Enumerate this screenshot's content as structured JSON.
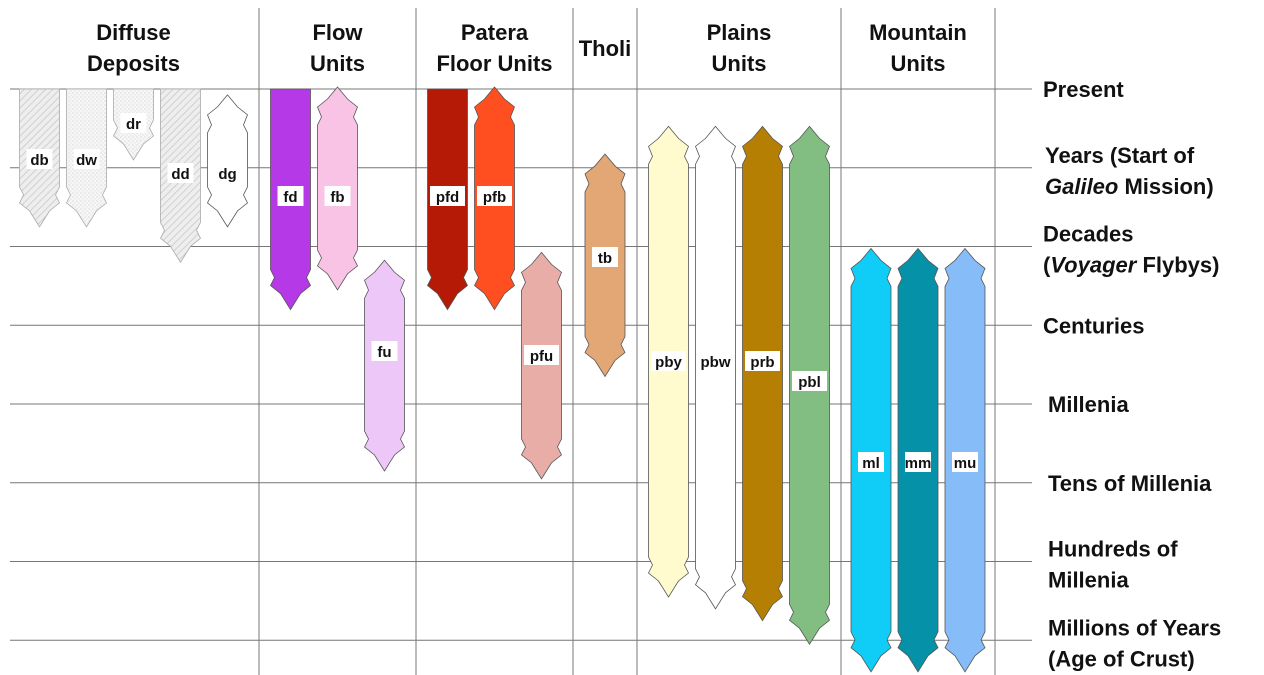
{
  "headers": [
    {
      "id": "diffuse",
      "lines": [
        "Diffuse",
        "Deposits"
      ]
    },
    {
      "id": "flow",
      "lines": [
        "Flow",
        "Units"
      ]
    },
    {
      "id": "patera",
      "lines": [
        "Patera",
        "Floor Units"
      ]
    },
    {
      "id": "tholi",
      "lines": [
        "Tholi"
      ]
    },
    {
      "id": "plains",
      "lines": [
        "Plains",
        "Units"
      ]
    },
    {
      "id": "mountain",
      "lines": [
        "Mountain",
        "Units"
      ]
    }
  ],
  "time_levels": [
    {
      "id": "present",
      "parts": [
        [
          {
            "t": "Present"
          }
        ]
      ]
    },
    {
      "id": "years",
      "parts": [
        [
          {
            "t": "Years (Start of"
          }
        ],
        [
          {
            "t": "Galileo",
            "i": true
          },
          {
            "t": " Mission)"
          }
        ]
      ]
    },
    {
      "id": "decades",
      "parts": [
        [
          {
            "t": "Decades"
          }
        ],
        [
          {
            "t": "("
          },
          {
            "t": "Voyager",
            "i": true
          },
          {
            "t": " Flybys)"
          }
        ]
      ]
    },
    {
      "id": "centuries",
      "parts": [
        [
          {
            "t": "Centuries"
          }
        ]
      ]
    },
    {
      "id": "millenia",
      "parts": [
        [
          {
            "t": "Millenia"
          }
        ]
      ]
    },
    {
      "id": "tens-of-millenia",
      "parts": [
        [
          {
            "t": "Tens of Millenia"
          }
        ]
      ]
    },
    {
      "id": "hundreds-of-millenia",
      "parts": [
        [
          {
            "t": "Hundreds of"
          }
        ],
        [
          {
            "t": "Millenia"
          }
        ]
      ]
    },
    {
      "id": "millions-of-years",
      "parts": [
        [
          {
            "t": "Millions of Years"
          }
        ],
        [
          {
            "t": "(Age of Crust)"
          }
        ]
      ]
    }
  ],
  "units": [
    {
      "label": "db",
      "group": "diffuse",
      "color": "#ebebeb",
      "pattern": "hatch",
      "top": "flat",
      "from": 0,
      "to": 1.7
    },
    {
      "label": "dw",
      "group": "diffuse",
      "color": "#f4f4f4",
      "pattern": "dots",
      "top": "flat",
      "from": 0,
      "to": 1.7
    },
    {
      "label": "dr",
      "group": "diffuse",
      "color": "#ebebeb",
      "pattern": "dots",
      "top": "flat",
      "from": 0,
      "to": 0.85
    },
    {
      "label": "dd",
      "group": "diffuse",
      "color": "#e2e2e2",
      "pattern": "hatch",
      "top": "flat",
      "from": 0,
      "to": 2.15
    },
    {
      "label": "dg",
      "group": "diffuse",
      "color": "#ffffff",
      "pattern": "none",
      "top": "arrow",
      "from": 0.1,
      "to": 1.7
    },
    {
      "label": "fd",
      "group": "flow",
      "color": "#b539e6",
      "pattern": "none",
      "top": "flat",
      "from": 0,
      "to": 2.75
    },
    {
      "label": "fb",
      "group": "flow",
      "color": "#f9c3e6",
      "pattern": "none",
      "top": "arrow",
      "from": 0,
      "to": 2.5
    },
    {
      "label": "fu",
      "group": "flow",
      "color": "#ecc7f7",
      "pattern": "none",
      "top": "arrow",
      "from": 2.2,
      "to": 4.8
    },
    {
      "label": "pfd",
      "group": "patera",
      "color": "#b41a06",
      "pattern": "none",
      "top": "flat",
      "from": 0,
      "to": 2.75
    },
    {
      "label": "pfb",
      "group": "patera",
      "color": "#ff4f20",
      "pattern": "none",
      "top": "arrow",
      "from": 0,
      "to": 2.75
    },
    {
      "label": "pfu",
      "group": "patera",
      "color": "#e9ada8",
      "pattern": "none",
      "top": "arrow",
      "from": 2.1,
      "to": 4.9
    },
    {
      "label": "tb",
      "group": "tholi",
      "color": "#e3a675",
      "pattern": "none",
      "top": "arrow",
      "from": 0.85,
      "to": 3.6
    },
    {
      "label": "pby",
      "group": "plains",
      "color": "#fffbce",
      "pattern": "none",
      "top": "arrow",
      "from": 0.5,
      "to": 6.4
    },
    {
      "label": "pbw",
      "group": "plains",
      "color": "#ffffff",
      "pattern": "none",
      "top": "arrow",
      "from": 0.5,
      "to": 6.55
    },
    {
      "label": "prb",
      "group": "plains",
      "color": "#b57f04",
      "pattern": "none",
      "top": "arrow",
      "from": 0.5,
      "to": 6.7
    },
    {
      "label": "pbl",
      "group": "plains",
      "color": "#82bd82",
      "pattern": "none",
      "top": "arrow",
      "from": 0.5,
      "to": 7.0
    },
    {
      "label": "ml",
      "group": "mountain",
      "color": "#10cdf7",
      "pattern": "none",
      "top": "arrow",
      "from": 2.05,
      "to": 7.35
    },
    {
      "label": "mm",
      "group": "mountain",
      "color": "#0592a9",
      "pattern": "none",
      "top": "arrow",
      "from": 2.05,
      "to": 7.35
    },
    {
      "label": "mu",
      "group": "mountain",
      "color": "#86bdf8",
      "pattern": "none",
      "top": "arrow",
      "from": 2.05,
      "to": 7.35
    }
  ]
}
